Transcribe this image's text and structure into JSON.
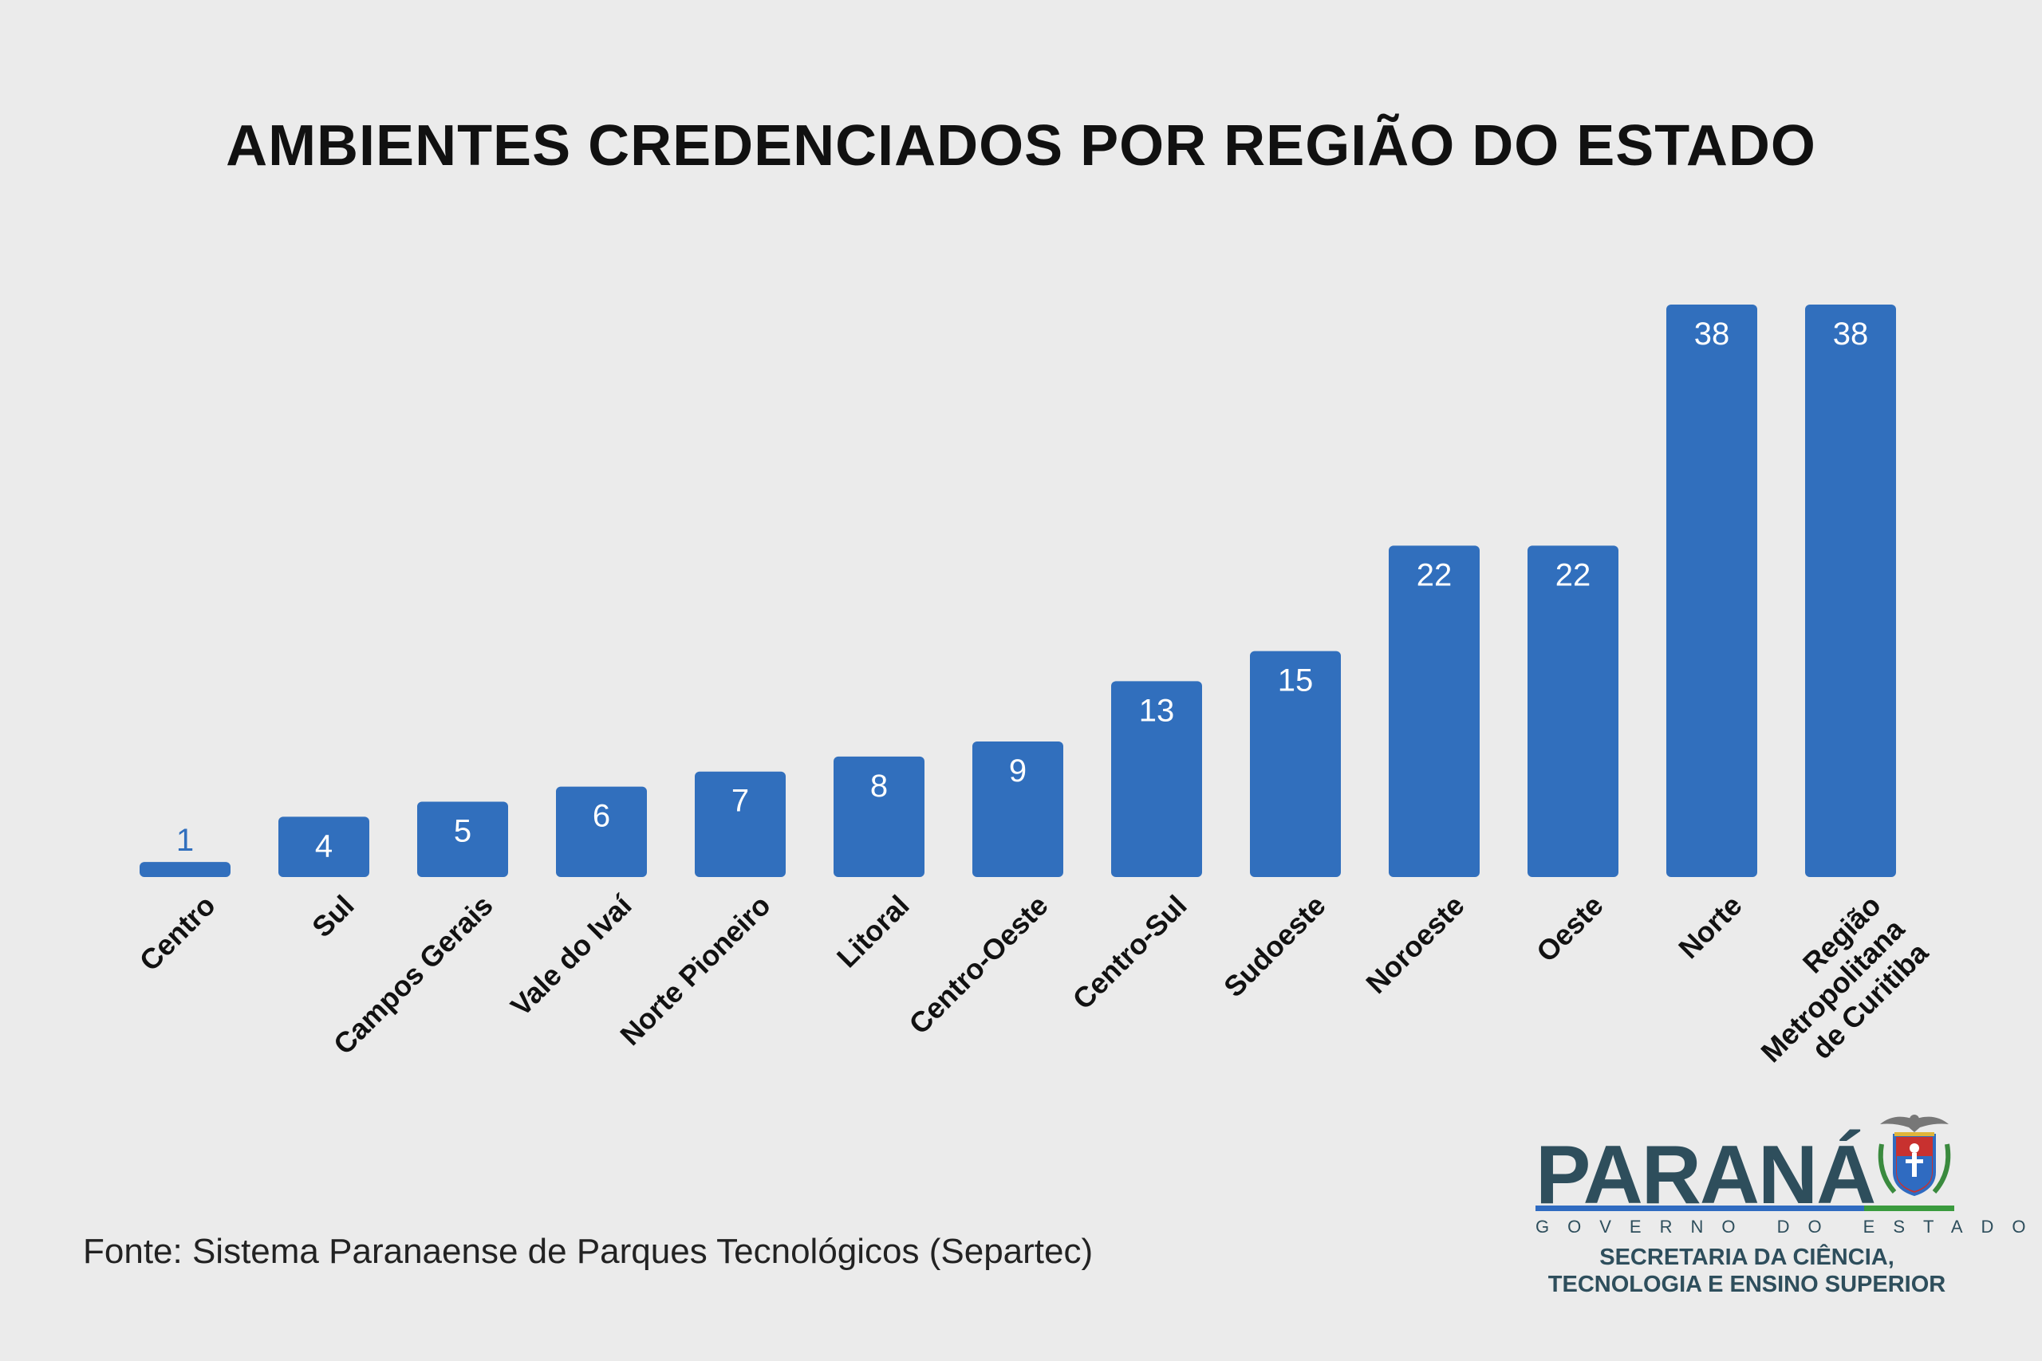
{
  "title": "AMBIENTES CREDENCIADOS POR REGIÃO DO ESTADO",
  "source": "Fonte: Sistema Paranaense de Parques Tecnológicos (Separtec)",
  "logo": {
    "name": "PARANÁ",
    "subtitle": "GOVERNO DO ESTADO",
    "dept_line1": "SECRETARIA DA CIÊNCIA,",
    "dept_line2": "TECNOLOGIA E ENSINO SUPERIOR",
    "crest_icon": "parana-coat-of-arms-icon"
  },
  "colors": {
    "bar": "#316fbd",
    "label_text": "#ffffff",
    "small_label_text": "#316fbd",
    "background": "#ebebeb"
  },
  "chart_data": {
    "type": "bar",
    "title": "AMBIENTES CREDENCIADOS POR REGIÃO DO ESTADO",
    "xlabel": "",
    "ylabel": "",
    "ylim": [
      0,
      38
    ],
    "grid": false,
    "categories": [
      [
        "Centro"
      ],
      [
        "Sul"
      ],
      [
        "Campos Gerais"
      ],
      [
        "Vale do Ivaí"
      ],
      [
        "Norte Pioneiro"
      ],
      [
        "Litoral"
      ],
      [
        "Centro-Oeste"
      ],
      [
        "Centro-Sul"
      ],
      [
        "Sudoeste"
      ],
      [
        "Noroeste"
      ],
      [
        "Oeste"
      ],
      [
        "Norte"
      ],
      [
        "Região",
        "Metropolitana",
        "de Curitiba"
      ]
    ],
    "values": [
      1,
      4,
      5,
      6,
      7,
      8,
      9,
      13,
      15,
      22,
      22,
      38,
      38
    ]
  }
}
